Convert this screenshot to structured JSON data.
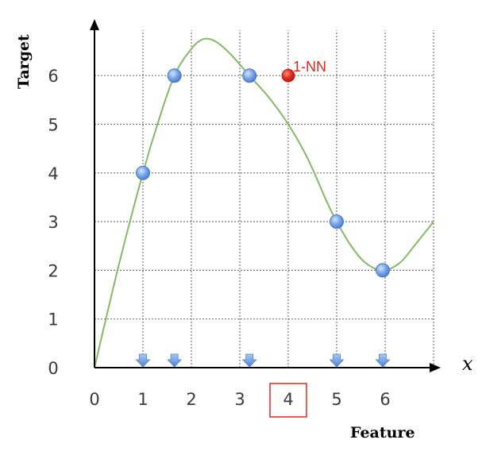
{
  "chart_data": {
    "type": "scatter",
    "xlabel": "Feature",
    "ylabel": "Target",
    "x_axis_symbol": "x",
    "xlim": [
      0,
      7
    ],
    "ylim": [
      0,
      7
    ],
    "x_ticks": [
      "0",
      "1",
      "2",
      "3",
      "4",
      "5",
      "6"
    ],
    "y_ticks": [
      "0",
      "1",
      "2",
      "3",
      "4",
      "5",
      "6"
    ],
    "grid": true,
    "highlighted_x_tick": "4",
    "series": [
      {
        "name": "",
        "type": "scatter",
        "color": "#6a9ce6",
        "points": [
          {
            "x": 1.0,
            "y": 4
          },
          {
            "x": 1.65,
            "y": 6
          },
          {
            "x": 3.2,
            "y": 6
          },
          {
            "x": 5.0,
            "y": 3
          },
          {
            "x": 5.95,
            "y": 2
          }
        ]
      },
      {
        "name": "",
        "type": "line",
        "color": "#86b868",
        "points": [
          {
            "x": 0,
            "y": 0
          },
          {
            "x": 0.5,
            "y": 2.1
          },
          {
            "x": 1.0,
            "y": 4.0
          },
          {
            "x": 1.3,
            "y": 5.0
          },
          {
            "x": 1.65,
            "y": 6.0
          },
          {
            "x": 2.0,
            "y": 6.55
          },
          {
            "x": 2.25,
            "y": 6.75
          },
          {
            "x": 2.5,
            "y": 6.7
          },
          {
            "x": 2.8,
            "y": 6.45
          },
          {
            "x": 3.2,
            "y": 6.0
          },
          {
            "x": 3.6,
            "y": 5.55
          },
          {
            "x": 4.0,
            "y": 5.0
          },
          {
            "x": 4.4,
            "y": 4.3
          },
          {
            "x": 4.8,
            "y": 3.4
          },
          {
            "x": 5.0,
            "y": 3.0
          },
          {
            "x": 5.3,
            "y": 2.5
          },
          {
            "x": 5.6,
            "y": 2.15
          },
          {
            "x": 5.95,
            "y": 2.0
          },
          {
            "x": 6.3,
            "y": 2.15
          },
          {
            "x": 6.6,
            "y": 2.5
          },
          {
            "x": 7.0,
            "y": 3.0
          }
        ]
      },
      {
        "name": "1-NN",
        "type": "scatter",
        "color": "#e0281c",
        "points": [
          {
            "x": 4.0,
            "y": 6
          }
        ]
      }
    ],
    "x_markers": [
      1.0,
      1.65,
      3.2,
      5.0,
      5.95
    ],
    "marker_color": "#6a9ce6"
  }
}
